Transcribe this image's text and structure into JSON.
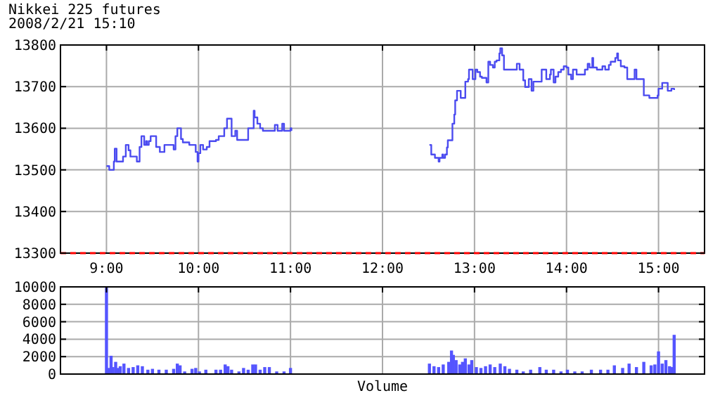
{
  "chart_data": [
    {
      "type": "step",
      "title": "Nikkei 225 futures",
      "subtitle": "2008/2/21 15:10",
      "xlim": [
        8.5,
        15.5
      ],
      "ylim": [
        13300,
        13800
      ],
      "xticks": [
        {
          "value": 9,
          "label": "9:00"
        },
        {
          "value": 10,
          "label": "10:00"
        },
        {
          "value": 11,
          "label": "11:00"
        },
        {
          "value": 12,
          "label": "12:00"
        },
        {
          "value": 13,
          "label": "13:00"
        },
        {
          "value": 14,
          "label": "14:00"
        },
        {
          "value": 15,
          "label": "15:00"
        }
      ],
      "yticks": [
        13300,
        13400,
        13500,
        13600,
        13700,
        13800
      ],
      "grid": true,
      "marker": "none",
      "ref_lines": [
        {
          "axis": "y",
          "value": 13300,
          "color": "#ff0000",
          "line_style": "dashed"
        }
      ],
      "series": [
        {
          "color": "#4b4bf0",
          "x": [
            9.0,
            9.03,
            9.08,
            9.08,
            9.09,
            9.11,
            9.11,
            9.17,
            9.18,
            9.21,
            9.24,
            9.26,
            9.32,
            9.33,
            9.36,
            9.38,
            9.41,
            9.43,
            9.44,
            9.46,
            9.48,
            9.53,
            9.54,
            9.58,
            9.6,
            9.63,
            9.71,
            9.73,
            9.75,
            9.77,
            9.79,
            9.81,
            9.83,
            9.87,
            9.9,
            9.95,
            9.97,
            9.99,
            10.0,
            10.02,
            10.05,
            10.09,
            10.12,
            10.19,
            10.22,
            10.27,
            10.28,
            10.31,
            10.34,
            10.36,
            10.4,
            10.42,
            10.52,
            10.54,
            10.58,
            10.6,
            10.61,
            10.64,
            10.67,
            10.7,
            10.8,
            10.83,
            10.86,
            10.91,
            10.93,
            11.0,
            11.01,
            11.5,
            12.51,
            12.53,
            12.56,
            12.57,
            12.59,
            12.61,
            12.62,
            12.65,
            12.66,
            12.68,
            12.7,
            12.71,
            12.75,
            12.76,
            12.78,
            12.79,
            12.81,
            12.84,
            12.85,
            12.89,
            12.9,
            12.93,
            12.94,
            12.97,
            12.98,
            13.01,
            13.03,
            13.06,
            13.08,
            13.11,
            13.13,
            13.15,
            13.17,
            13.2,
            13.22,
            13.24,
            13.27,
            13.28,
            13.3,
            13.32,
            13.44,
            13.46,
            13.49,
            13.51,
            13.53,
            13.55,
            13.59,
            13.62,
            13.64,
            13.71,
            13.73,
            13.77,
            13.78,
            13.82,
            13.83,
            13.86,
            13.88,
            13.91,
            13.94,
            13.97,
            14.0,
            14.02,
            14.05,
            14.07,
            14.11,
            14.17,
            14.2,
            14.23,
            14.25,
            14.28,
            14.29,
            14.33,
            14.39,
            14.42,
            14.46,
            14.48,
            14.53,
            14.55,
            14.56,
            14.59,
            14.63,
            14.66,
            14.71,
            14.74,
            14.76,
            14.81,
            14.84,
            14.9,
            14.93,
            14.99,
            15.0,
            15.04,
            15.08,
            15.1,
            15.14,
            15.17
          ],
          "values": [
            13509,
            13500,
            13500,
            13520,
            13551,
            13540,
            13520,
            13520,
            13532,
            13560,
            13547,
            13532,
            13532,
            13520,
            13555,
            13581,
            13560,
            13569,
            13560,
            13569,
            13581,
            13581,
            13555,
            13543,
            13543,
            13560,
            13560,
            13549,
            13581,
            13600,
            13600,
            13574,
            13566,
            13566,
            13560,
            13560,
            13543,
            13520,
            13540,
            13560,
            13549,
            13555,
            13569,
            13572,
            13581,
            13581,
            13600,
            13623,
            13623,
            13581,
            13594,
            13572,
            13572,
            13600,
            13600,
            13642,
            13626,
            13611,
            13600,
            13594,
            13594,
            13608,
            13594,
            13611,
            13594,
            13600,
            13594,
            null,
            13560,
            13537,
            13537,
            13529,
            13529,
            13520,
            13529,
            13537,
            13529,
            13537,
            13554,
            13571,
            13571,
            13611,
            13633,
            13667,
            13690,
            13690,
            13673,
            13673,
            13712,
            13718,
            13741,
            13741,
            13718,
            13741,
            13735,
            13724,
            13721,
            13721,
            13710,
            13760,
            13752,
            13746,
            13760,
            13763,
            13780,
            13792,
            13775,
            13741,
            13741,
            13755,
            13741,
            13741,
            13715,
            13699,
            13718,
            13690,
            13712,
            13712,
            13741,
            13741,
            13718,
            13729,
            13741,
            13710,
            13724,
            13735,
            13741,
            13749,
            13746,
            13729,
            13718,
            13741,
            13729,
            13729,
            13741,
            13755,
            13746,
            13769,
            13746,
            13741,
            13749,
            13741,
            13752,
            13760,
            13769,
            13780,
            13763,
            13749,
            13746,
            13718,
            13718,
            13741,
            13718,
            13718,
            13679,
            13673,
            13673,
            13679,
            13695,
            13709,
            13709,
            13690,
            13695,
            13692
          ]
        }
      ]
    },
    {
      "type": "bar",
      "xlabel": "Volume",
      "xlim": [
        8.5,
        15.5
      ],
      "ylim": [
        0,
        10000
      ],
      "yticks": [
        0,
        2000,
        4000,
        6000,
        8000,
        10000
      ],
      "grid": true,
      "tick_labels": "y",
      "xticks": [
        {
          "value": 9,
          "label": null
        },
        {
          "value": 10,
          "label": null
        },
        {
          "value": 11,
          "label": null
        },
        {
          "value": 12,
          "label": null
        },
        {
          "value": 13,
          "label": null
        },
        {
          "value": 14,
          "label": null
        },
        {
          "value": 15,
          "label": null
        }
      ],
      "color": "#5555ff",
      "x": [
        9.0,
        9.02,
        9.05,
        9.07,
        9.1,
        9.12,
        9.15,
        9.19,
        9.24,
        9.29,
        9.34,
        9.39,
        9.45,
        9.5,
        9.57,
        9.65,
        9.73,
        9.77,
        9.8,
        9.85,
        9.93,
        9.97,
        10.01,
        10.08,
        10.19,
        10.24,
        10.29,
        10.32,
        10.36,
        10.44,
        10.49,
        10.54,
        10.59,
        10.62,
        10.67,
        10.72,
        10.77,
        10.85,
        10.93,
        11.0,
        12.51,
        12.56,
        12.61,
        12.66,
        12.72,
        12.75,
        12.77,
        12.8,
        12.84,
        12.87,
        12.9,
        12.94,
        12.97,
        13.02,
        13.07,
        13.12,
        13.17,
        13.22,
        13.28,
        13.33,
        13.38,
        13.46,
        13.53,
        13.61,
        13.71,
        13.78,
        13.86,
        13.94,
        14.01,
        14.09,
        14.17,
        14.27,
        14.37,
        14.45,
        14.52,
        14.61,
        14.68,
        14.76,
        14.84,
        14.92,
        14.96,
        15.0,
        15.04,
        15.08,
        15.12,
        15.15,
        15.17
      ],
      "values": [
        9900,
        700,
        2100,
        800,
        1400,
        700,
        900,
        1200,
        700,
        800,
        1000,
        900,
        500,
        600,
        500,
        500,
        600,
        1200,
        1000,
        300,
        600,
        700,
        300,
        500,
        500,
        500,
        1100,
        900,
        500,
        300,
        700,
        500,
        1100,
        1100,
        500,
        800,
        800,
        300,
        300,
        700,
        1200,
        900,
        800,
        1100,
        1400,
        2700,
        2200,
        1600,
        1100,
        1400,
        1800,
        1100,
        1600,
        800,
        700,
        900,
        1100,
        800,
        1200,
        900,
        600,
        500,
        300,
        500,
        800,
        500,
        500,
        300,
        500,
        300,
        300,
        500,
        500,
        500,
        1000,
        700,
        1200,
        800,
        1400,
        1000,
        1100,
        2600,
        1200,
        1600,
        900,
        800,
        4500
      ]
    }
  ]
}
